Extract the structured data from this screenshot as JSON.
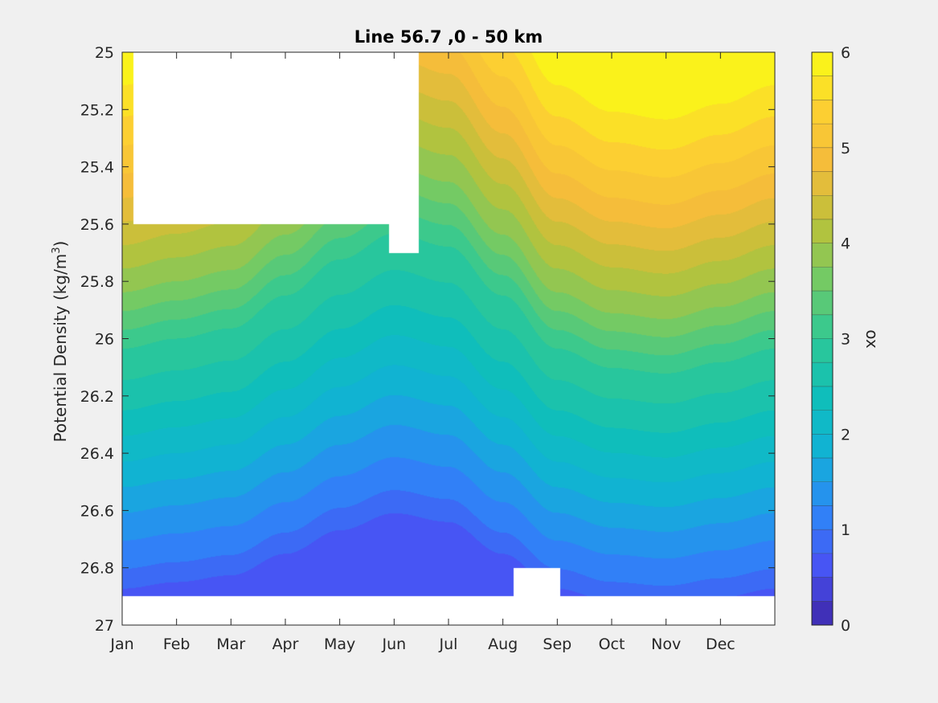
{
  "chart_data": {
    "type": "contour",
    "title": "Line 56.7 ,0 - 50 km",
    "ylabel": "Potential Density (kg/m",
    "ylabel_sup": "3",
    "ylabel_close": ")",
    "xlabel": "",
    "x_tick_labels": [
      "Jan",
      "Feb",
      "Mar",
      "Apr",
      "May",
      "Jun",
      "Jul",
      "Aug",
      "Sep",
      "Oct",
      "Nov",
      "Dec"
    ],
    "y_tick_labels": [
      "25",
      "25.2",
      "25.4",
      "25.6",
      "25.8",
      "26",
      "26.2",
      "26.4",
      "26.6",
      "26.8",
      "27"
    ],
    "y_ticks": [
      25,
      25.2,
      25.4,
      25.6,
      25.8,
      26,
      26.2,
      26.4,
      26.6,
      26.8,
      27
    ],
    "ylim": [
      25,
      27
    ],
    "y_reversed": true,
    "xlim_months": [
      0,
      12
    ],
    "colorbar": {
      "label": "ox",
      "tick_labels": [
        "0",
        "1",
        "2",
        "3",
        "4",
        "5",
        "6"
      ],
      "ticks": [
        0,
        1,
        2,
        3,
        4,
        5,
        6
      ],
      "range": [
        0,
        6
      ],
      "levels": 24,
      "colormap": "parula"
    },
    "ox_isopycnal_profile": [
      {
        "density": 25.0,
        "ox": 5.9
      },
      {
        "density": 25.2,
        "ox": 5.45
      },
      {
        "density": 25.4,
        "ox": 4.95
      },
      {
        "density": 25.6,
        "ox": 4.35
      },
      {
        "density": 25.8,
        "ox": 3.75
      },
      {
        "density": 26.0,
        "ox": 3.0
      },
      {
        "density": 26.2,
        "ox": 2.55
      },
      {
        "density": 26.4,
        "ox": 2.0
      },
      {
        "density": 26.6,
        "ox": 1.45
      },
      {
        "density": 26.8,
        "ox": 0.95
      },
      {
        "density": 26.9,
        "ox": 0.55
      }
    ],
    "seasonal_isopycnal_shift_months": [
      0,
      1,
      2,
      3,
      4,
      5,
      6,
      7,
      8,
      9,
      10,
      11,
      12
    ],
    "seasonal_isopycnal_shift_density": [
      0.05,
      0.0,
      -0.05,
      -0.2,
      -0.35,
      -0.45,
      -0.4,
      -0.2,
      0.05,
      0.15,
      0.18,
      0.12,
      0.05
    ],
    "no_data_regions": [
      {
        "name": "upper-left-gap",
        "months": [
          0.2,
          5.3
        ],
        "density_bottom": 25.6
      },
      {
        "name": "upper-notch",
        "months": [
          4.9,
          5.45
        ],
        "density_bottom": 25.7
      },
      {
        "name": "bottom-band",
        "months": [
          0,
          12
        ],
        "density_top": 26.9
      },
      {
        "name": "bottom-notch",
        "months": [
          7.2,
          8.05
        ],
        "density_top": 26.8
      }
    ]
  }
}
